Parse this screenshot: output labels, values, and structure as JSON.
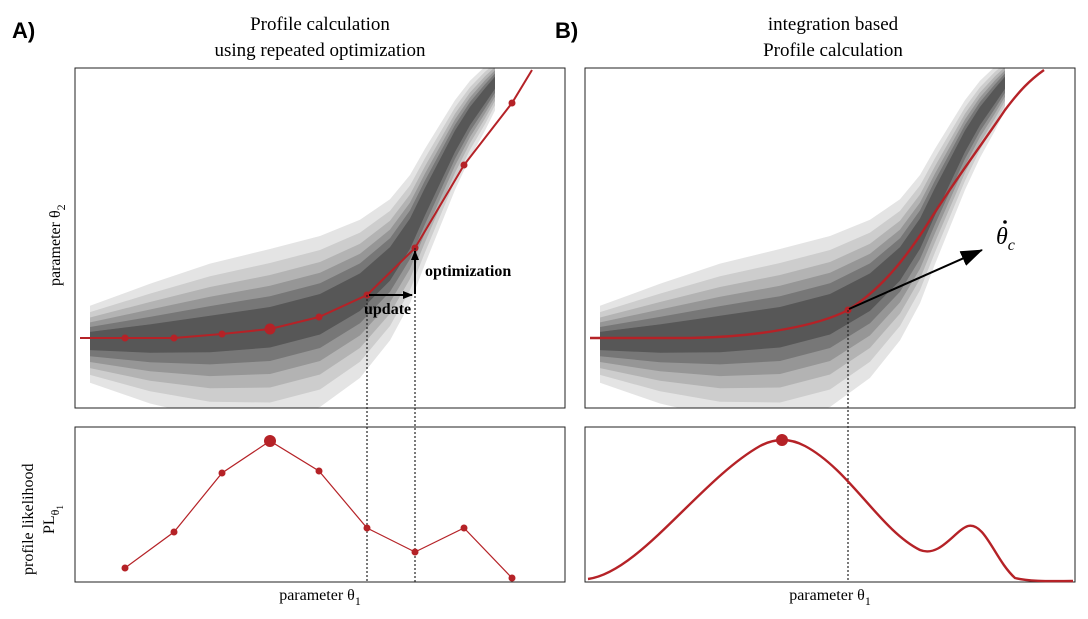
{
  "panels": [
    {
      "letter": "A)",
      "title_line1": "Profile calculation",
      "title_line2": "using repeated optimization",
      "y_label_top": "parameter θ",
      "y_label_top_sub": "2",
      "y_label_bottom_1": "profile likelihood",
      "y_label_bottom_2": "PL",
      "y_label_bottom_sub": "θ",
      "y_label_bottom_subsub": "1",
      "x_label": "parameter θ",
      "x_label_sub": "1",
      "annotation_update": "update",
      "annotation_optimization": "optimization"
    },
    {
      "letter": "B)",
      "title_line1": "integration based",
      "title_line2": "Profile calculation",
      "x_label": "parameter θ",
      "x_label_sub": "1",
      "annotation_theta": "θ",
      "annotation_theta_sub": "c"
    }
  ],
  "colors": {
    "profile": "#b52227",
    "contours": [
      "#e4e4e4",
      "#cdcdcd",
      "#b3b3b3",
      "#969696",
      "#777777",
      "#575757"
    ]
  }
}
